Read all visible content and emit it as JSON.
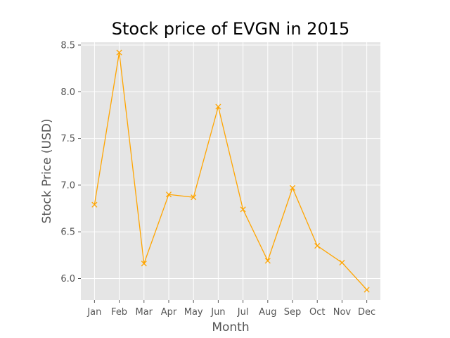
{
  "chart_data": {
    "type": "line",
    "title": "Stock price of EVGN in 2015",
    "xlabel": "Month",
    "ylabel": "Stock Price (USD)",
    "categories": [
      "Jan",
      "Feb",
      "Mar",
      "Apr",
      "May",
      "Jun",
      "Jul",
      "Aug",
      "Sep",
      "Oct",
      "Nov",
      "Dec"
    ],
    "series": [
      {
        "values": [
          6.79,
          8.42,
          6.16,
          6.9,
          6.87,
          7.84,
          6.74,
          6.19,
          6.97,
          6.35,
          6.17,
          5.88
        ],
        "color": "#FFA500",
        "marker": "x"
      }
    ],
    "ylim": [
      5.77,
      8.53
    ],
    "yticks": [
      "6.0",
      "6.5",
      "7.0",
      "7.5",
      "8.0",
      "8.5"
    ],
    "grid": true,
    "style": "ggplot",
    "colors": {
      "plot_background": "#E5E5E5",
      "grid": "#FFFFFF",
      "tick_text": "#555555"
    }
  }
}
